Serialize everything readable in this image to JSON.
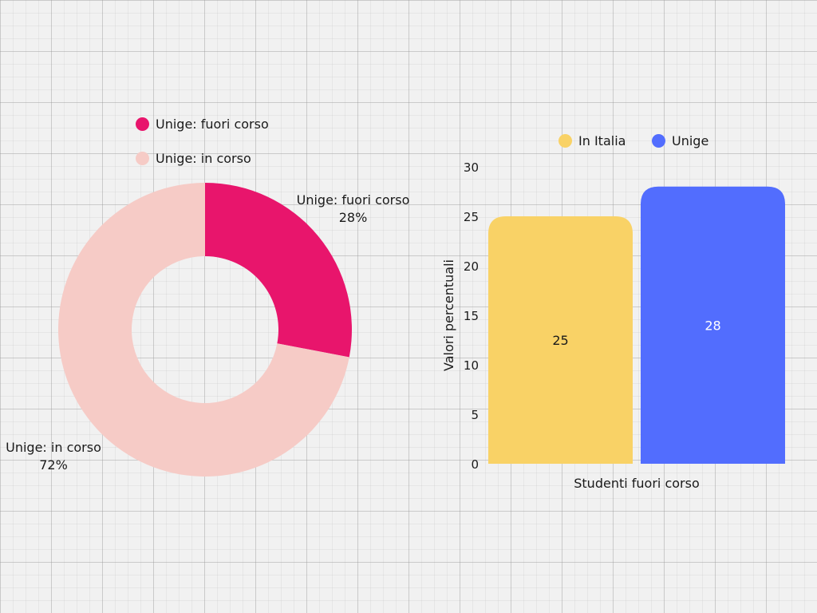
{
  "chart_data": [
    {
      "type": "pie",
      "variant": "donut",
      "legend_position": "top-left",
      "labels": [
        "Unige: fuori corso",
        "Unige: in corso"
      ],
      "values": [
        28,
        72
      ],
      "value_labels": [
        "28%",
        "72%"
      ],
      "colors": [
        "#e8156c",
        "#f6cbc6"
      ]
    },
    {
      "type": "bar",
      "legend_position": "top",
      "categories": [
        "Studenti fuori corso"
      ],
      "series": [
        {
          "name": "In Italia",
          "values": [
            25
          ],
          "color": "#f9d266"
        },
        {
          "name": "Unige",
          "values": [
            28
          ],
          "color": "#526dfe"
        }
      ],
      "data_labels": [
        "25",
        "28"
      ],
      "xlabel": "Studenti fuori corso",
      "ylabel": "Valori percentuali",
      "ylim": [
        0,
        30
      ],
      "yticks": [
        "0",
        "5",
        "10",
        "15",
        "20",
        "25",
        "30"
      ],
      "grid": false
    }
  ]
}
